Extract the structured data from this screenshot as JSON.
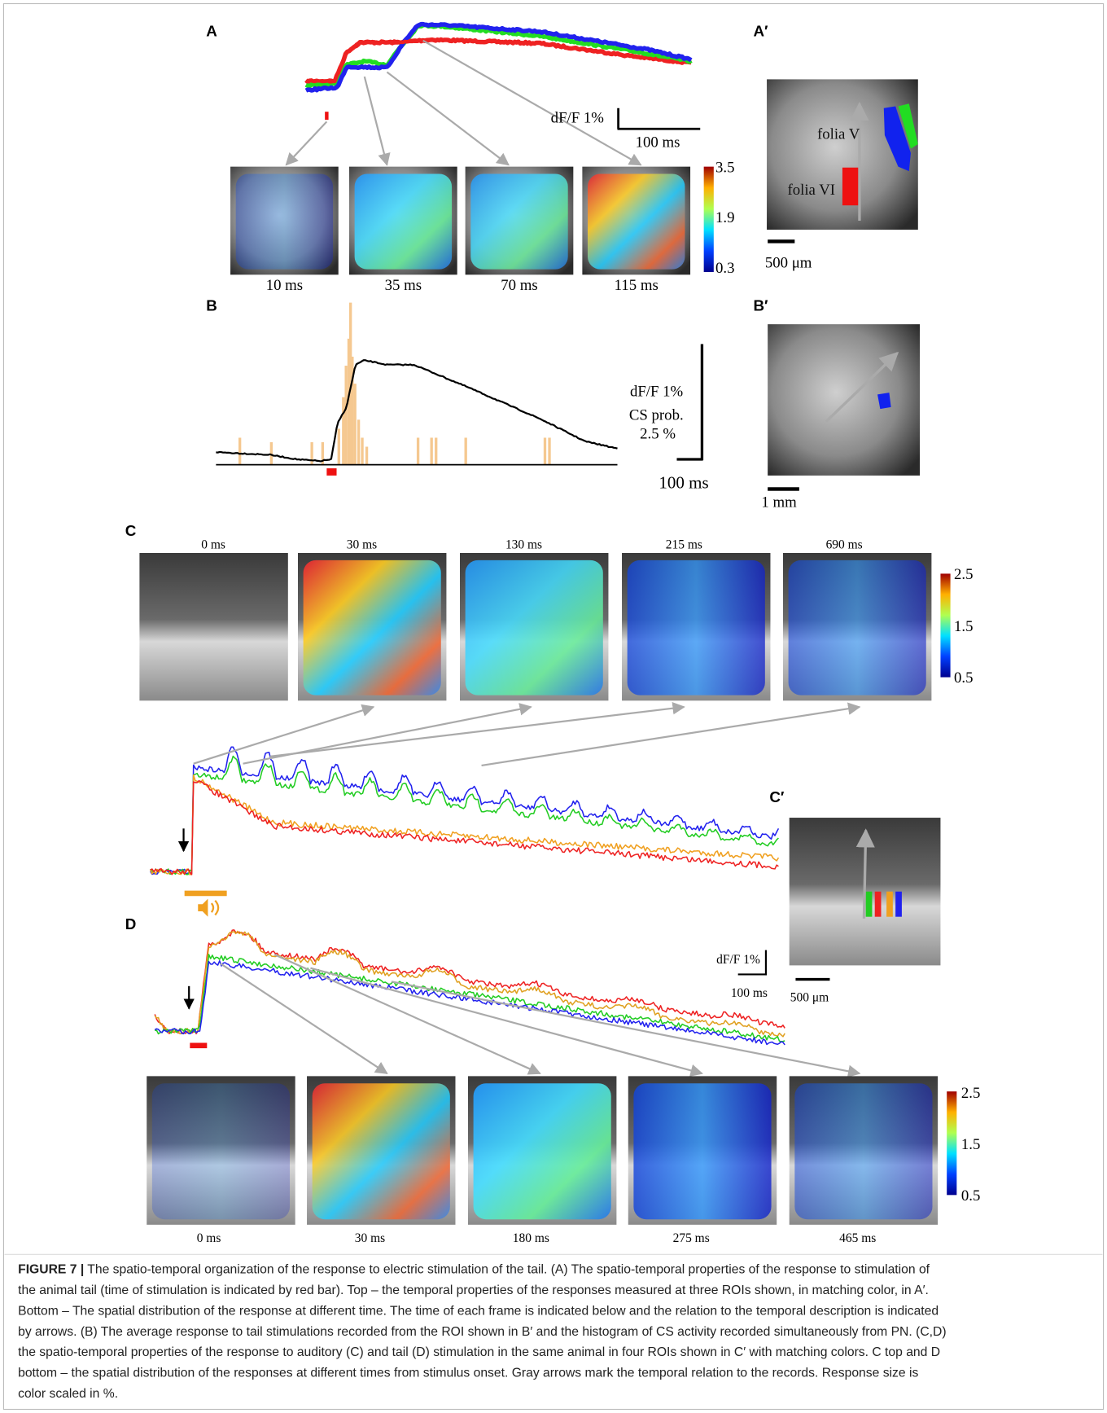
{
  "panels": {
    "A": {
      "label": "A",
      "scale_y": "dF/F 1%",
      "scale_x": "100 ms",
      "colorbar": [
        "3.5",
        "1.9",
        "0.3"
      ],
      "frames": [
        "10 ms",
        "35 ms",
        "70 ms",
        "115 ms"
      ]
    },
    "A_prime": {
      "label": "A′",
      "regions": [
        "folia V",
        "folia VI"
      ],
      "scale_bar": "500 μm"
    },
    "B": {
      "label": "B",
      "scale_y": [
        "dF/F 1%",
        "CS prob.",
        "2.5 %"
      ],
      "scale_x": "100 ms"
    },
    "B_prime": {
      "label": "B′",
      "scale_bar": "1 mm"
    },
    "C": {
      "label": "C",
      "frames": [
        "0 ms",
        "30 ms",
        "130 ms",
        "215 ms",
        "690 ms"
      ],
      "colorbar": [
        "2.5",
        "1.5",
        "0.5"
      ]
    },
    "C_prime": {
      "label": "C′",
      "scale_bar": "500 μm",
      "scale_y": "dF/F 1%",
      "scale_x": "100 ms"
    },
    "D": {
      "label": "D",
      "frames": [
        "0 ms",
        "30 ms",
        "180 ms",
        "275 ms",
        "465 ms"
      ],
      "colorbar": [
        "2.5",
        "1.5",
        "0.5"
      ]
    }
  },
  "caption": {
    "label": "FIGURE 7 |",
    "lines": [
      " The spatio-temporal organization of the response to electric stimulation of the tail. (A) The spatio-temporal properties of the response to stimulation of",
      "the animal tail (time of stimulation is indicated by red bar). Top – the temporal properties of the responses measured at three ROIs shown, in matching color, in A′.",
      "Bottom – The spatial distribution of the response at different time. The time of each frame is indicated below and the relation to the temporal description is indicated",
      "by arrows. (B) The average response to tail stimulations recorded from the ROI shown in B′ and the histogram of CS activity recorded simultaneously from PN. (C,D)",
      "the spatio-temporal properties of the response to auditory (C) and tail (D) stimulation in the same animal in four ROIs shown in C′ with matching colors. C top and D",
      "bottom – the spatial distribution of the responses at different times from stimulus onset. Gray arrows mark the temporal relation to the records. Response size is",
      "color scaled in %."
    ]
  }
}
